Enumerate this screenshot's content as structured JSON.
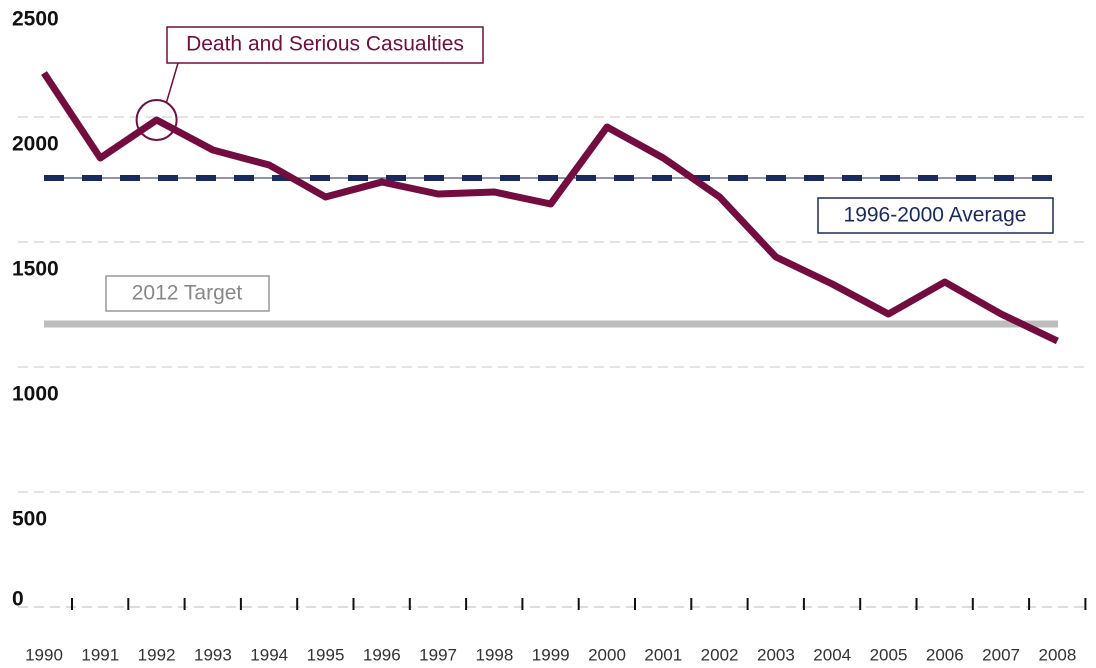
{
  "chart_data": {
    "type": "line",
    "categories": [
      "1990",
      "1991",
      "1992",
      "1993",
      "1994",
      "1995",
      "1996",
      "1997",
      "1998",
      "1999",
      "2000",
      "2001",
      "2002",
      "2003",
      "2004",
      "2005",
      "2006",
      "2007",
      "2008"
    ],
    "series": [
      {
        "name": "Death and Serious Casualties",
        "color": "#730c3f",
        "values": [
          2176,
          1836,
          1988,
          1868,
          1808,
          1680,
          1740,
          1692,
          1700,
          1652,
          1960,
          1836,
          1680,
          1440,
          1332,
          1212,
          1340,
          1212,
          1104
        ]
      }
    ],
    "average": {
      "label": "1996-2000 Average",
      "value": 1756,
      "color": "#1b2a5e"
    },
    "target": {
      "label": "2012 Target",
      "value": 1172,
      "color": "#bdbdbd"
    },
    "ylim": [
      0,
      2500
    ],
    "yticks": [
      0,
      500,
      1000,
      1500,
      2000,
      2500
    ],
    "grid": true
  }
}
